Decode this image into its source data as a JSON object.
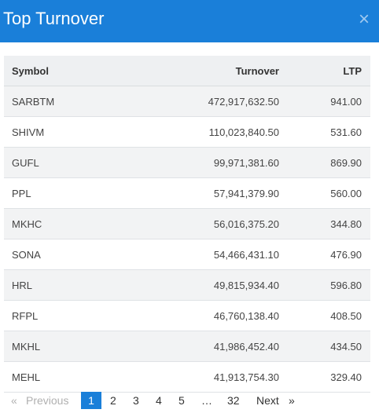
{
  "header": {
    "title": "Top Turnover",
    "close_glyph": "×"
  },
  "table": {
    "columns": [
      "Symbol",
      "Turnover",
      "LTP"
    ],
    "rows": [
      {
        "symbol": "SARBTM",
        "turnover": "472,917,632.50",
        "ltp": "941.00"
      },
      {
        "symbol": "SHIVM",
        "turnover": "110,023,840.50",
        "ltp": "531.60"
      },
      {
        "symbol": "GUFL",
        "turnover": "99,971,381.60",
        "ltp": "869.90"
      },
      {
        "symbol": "PPL",
        "turnover": "57,941,379.90",
        "ltp": "560.00"
      },
      {
        "symbol": "MKHC",
        "turnover": "56,016,375.20",
        "ltp": "344.80"
      },
      {
        "symbol": "SONA",
        "turnover": "54,466,431.10",
        "ltp": "476.90"
      },
      {
        "symbol": "HRL",
        "turnover": "49,815,934.40",
        "ltp": "596.80"
      },
      {
        "symbol": "RFPL",
        "turnover": "46,760,138.40",
        "ltp": "408.50"
      },
      {
        "symbol": "MKHL",
        "turnover": "41,986,452.40",
        "ltp": "434.50"
      },
      {
        "symbol": "MEHL",
        "turnover": "41,913,754.30",
        "ltp": "329.40"
      }
    ]
  },
  "pagination": {
    "previous_arrow": "«",
    "previous_label": "Previous",
    "pages": [
      "1",
      "2",
      "3",
      "4",
      "5",
      "…",
      "32"
    ],
    "current_page": "1",
    "next_label": "Next",
    "next_arrow": "»"
  },
  "colors": {
    "header_bg": "#1a7fd9",
    "active_page_bg": "#1a7fd9",
    "row_stripe": "#f2f3f4"
  }
}
